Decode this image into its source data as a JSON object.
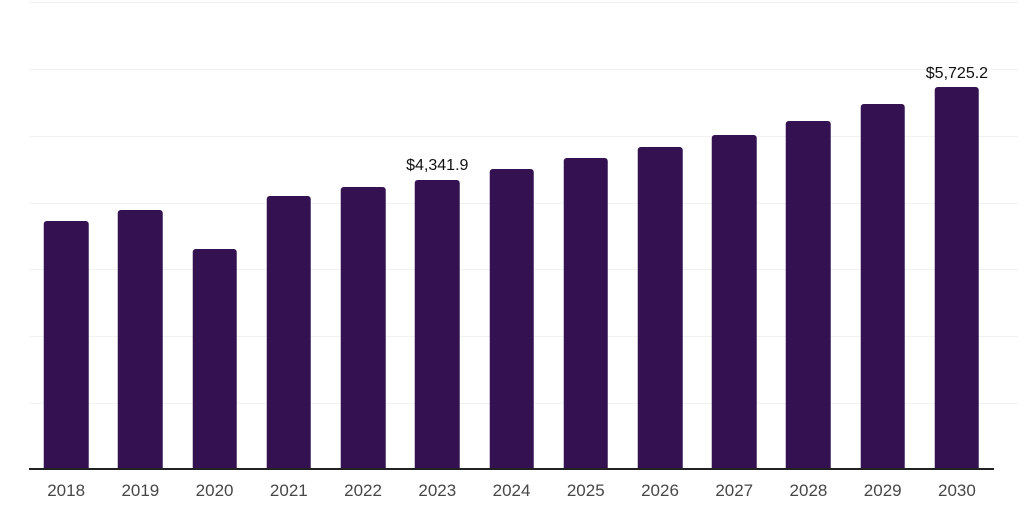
{
  "chart_data": {
    "type": "bar",
    "title": "",
    "xlabel": "",
    "ylabel": "",
    "categories": [
      "2018",
      "2019",
      "2020",
      "2021",
      "2022",
      "2023",
      "2024",
      "2025",
      "2026",
      "2027",
      "2028",
      "2029",
      "2030"
    ],
    "values": [
      3730,
      3890,
      3305,
      4100,
      4240,
      4341.9,
      4500,
      4660,
      4835,
      5010,
      5225,
      5470,
      5725.2
    ],
    "data_labels": [
      "",
      "",
      "",
      "",
      "",
      "$4,341.9",
      "",
      "",
      "",
      "",
      "",
      "",
      "$5,725.2"
    ],
    "ylim": [
      0,
      7000
    ],
    "y_gridline_step": 1000,
    "y_axis_tick_labels_visible": false,
    "grid": "horizontal",
    "legend": "none",
    "colors": {
      "bar": "#341150",
      "gridline": "#f2f2f2",
      "axis_line": "#222222",
      "x_tick_label": "#474747",
      "data_label": "#111111",
      "background": "#ffffff"
    }
  }
}
